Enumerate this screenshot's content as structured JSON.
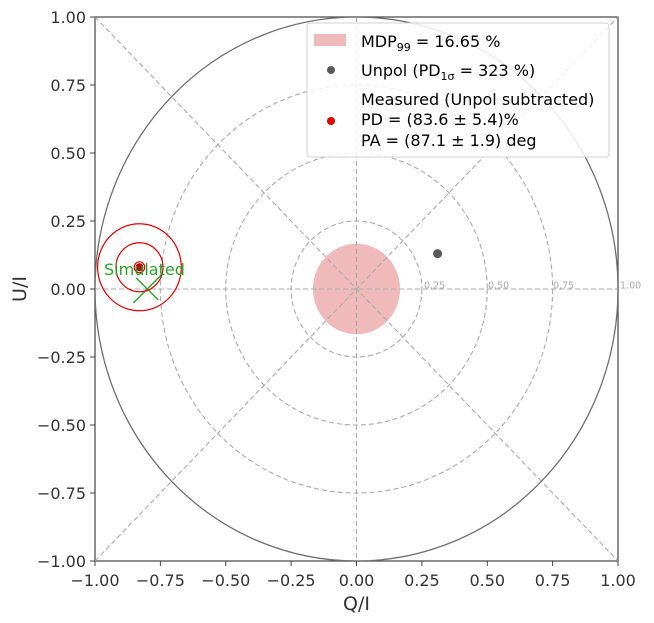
{
  "chart_data": {
    "type": "scatter",
    "xlabel": "Q/I",
    "ylabel": "U/I",
    "xlim": [
      -1.0,
      1.0
    ],
    "ylim": [
      -1.0,
      1.0
    ],
    "x_ticks": [
      "−1.00",
      "−0.75",
      "−0.50",
      "−0.25",
      "0.00",
      "0.25",
      "0.50",
      "0.75",
      "1.00"
    ],
    "y_ticks": [
      "−1.00",
      "−0.75",
      "−0.50",
      "−0.25",
      "0.00",
      "0.25",
      "0.50",
      "0.75",
      "1.00"
    ],
    "ring_labels": [
      "0.25",
      "0.50",
      "0.75",
      "1.00"
    ],
    "rings": [
      0.25,
      0.5,
      0.75,
      1.0
    ],
    "grid": false,
    "legend_position": "top-right",
    "mdp": {
      "radius": 0.1665,
      "color": "#f0b9ba",
      "legend_main": "MDP",
      "legend_sub": "99",
      "legend_rest": " = 16.65 %"
    },
    "unpol": {
      "q": 0.31,
      "u": 0.13,
      "color": "#5a5a5a",
      "legend_a": "Unpol (PD",
      "legend_sub": "1σ",
      "legend_b": " = 323 %)"
    },
    "measured": {
      "q": -0.83,
      "u": 0.08,
      "color": "#e00000",
      "contour_radii": [
        0.02,
        0.09,
        0.16
      ],
      "legend_line1": "Measured (Unpol subtracted)",
      "legend_line2": "PD = (83.6 ± 5.4)%",
      "legend_line3": "PA = (87.1 ± 1.9) deg"
    },
    "simulated": {
      "label": "Simulated",
      "color": "#2ca02c",
      "q": -0.8,
      "u": 0.0
    }
  }
}
